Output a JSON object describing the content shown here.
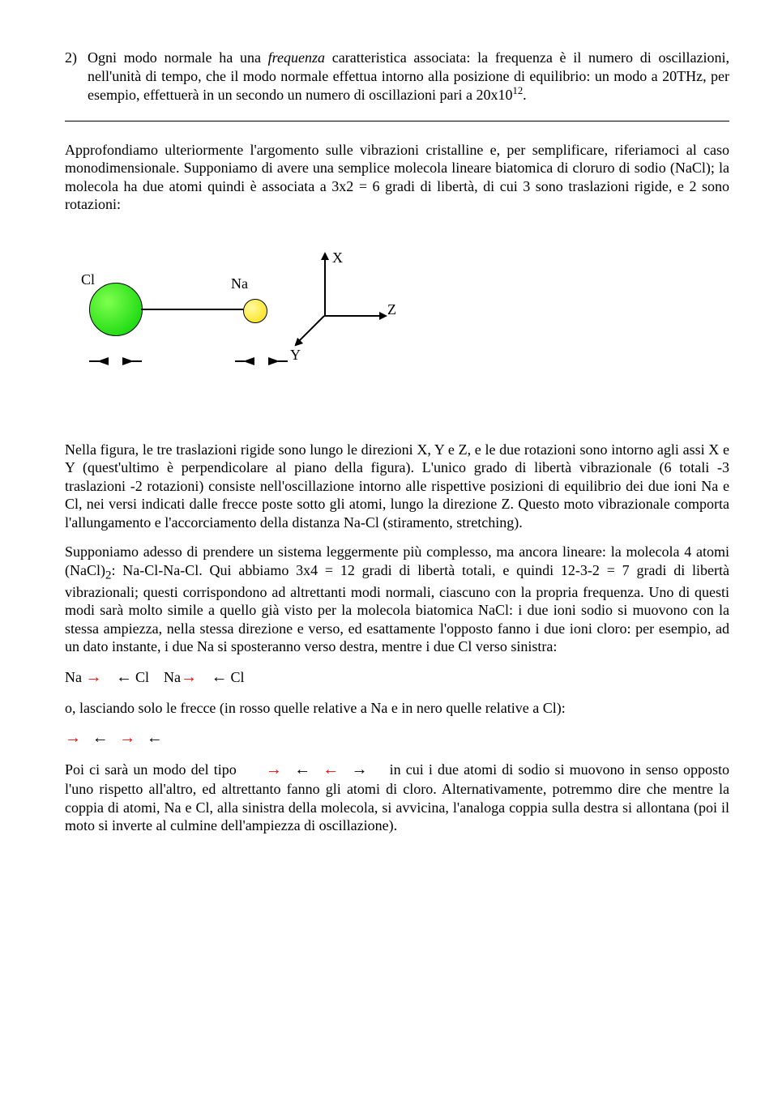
{
  "item2": {
    "num": "2)",
    "text_a": "Ogni modo normale ha una ",
    "text_b": "frequenza",
    "text_c": " caratteristica associata: la frequenza è il numero di oscillazioni, nell'unità di tempo, che il modo normale effettua intorno alla posizione di equilibrio: un modo a 20THz, per esempio, effettuerà in un secondo un numero di oscillazioni pari a 20x10",
    "sup": "12",
    "text_d": "."
  },
  "para1": "Approfondiamo ulteriormente l'argomento sulle vibrazioni cristalline e, per semplificare, riferiamoci al caso monodimensionale. Supponiamo di avere una semplice molecola lineare biatomica di cloruro di sodio (NaCl); la molecola ha due atomi quindi è associata a 3x2 = 6 gradi di libertà, di cui 3 sono traslazioni rigide, e 2 sono rotazioni:",
  "diagram": {
    "cl_label": "Cl",
    "na_label": "Na",
    "x_label": "X",
    "y_label": "Y",
    "z_label": "Z",
    "cl_color": "#00d000",
    "na_color": "#ffe000"
  },
  "para2": "Nella figura, le tre traslazioni rigide sono lungo le direzioni X, Y e Z, e le due rotazioni sono intorno agli assi X e Y (quest'ultimo è perpendicolare al piano della figura). L'unico grado di libertà vibrazionale (6 totali -3 traslazioni -2 rotazioni) consiste nell'oscillazione intorno alle rispettive posizioni di equilibrio dei due ioni Na e Cl, nei versi indicati dalle frecce poste sotto gli atomi, lungo la direzione Z. Questo moto vibrazionale comporta l'allungamento e l'accorciamento della distanza Na-Cl (stiramento, stretching).",
  "para3_a": "Supponiamo adesso di prendere un sistema leggermente più complesso, ma ancora lineare: la molecola 4 atomi (NaCl)",
  "para3_sub": "2",
  "para3_b": ": Na-Cl-Na-Cl. Qui abbiamo 3x4 = 12 gradi di libertà totali, e quindi 12-3-2 = 7 gradi di libertà vibrazionali; questi corrispondono ad altrettanti modi normali, ciascuno con la propria frequenza. Uno di questi modi sarà molto simile a quello già visto per la molecola biatomica NaCl: i due ioni sodio si muovono con la stessa ampiezza, nella stessa direzione e verso, ed esattamente l'opposto fanno i due ioni cloro: per esempio, ad un dato instante, i due Na si sposteranno verso destra, mentre i due Cl verso sinistra:",
  "line1": {
    "na": "Na",
    "cl": "Cl",
    "arr_r": "→",
    "arr_l": "←"
  },
  "para4": "o, lasciando solo le frecce (in rosso quelle relative a Na e in nero quelle relative a Cl):",
  "seq1": {
    "a1": "→",
    "a2": "←",
    "a3": "→",
    "a4": "←"
  },
  "para5_a": "Poi ci sarà un modo del tipo",
  "seq2": {
    "a1": "→",
    "a2": "←",
    "a3": "←",
    "a4": "→"
  },
  "para5_b": "in cui i due atomi di sodio si muovono in senso opposto l'uno rispetto all'altro, ed altrettanto fanno gli atomi di cloro. Alternativamente, potremmo dire che mentre la coppia di atomi, Na e Cl, alla sinistra della molecola, si avvicina, l'analoga coppia sulla destra si allontana (poi il moto si inverte al culmine dell'ampiezza di oscillazione)."
}
